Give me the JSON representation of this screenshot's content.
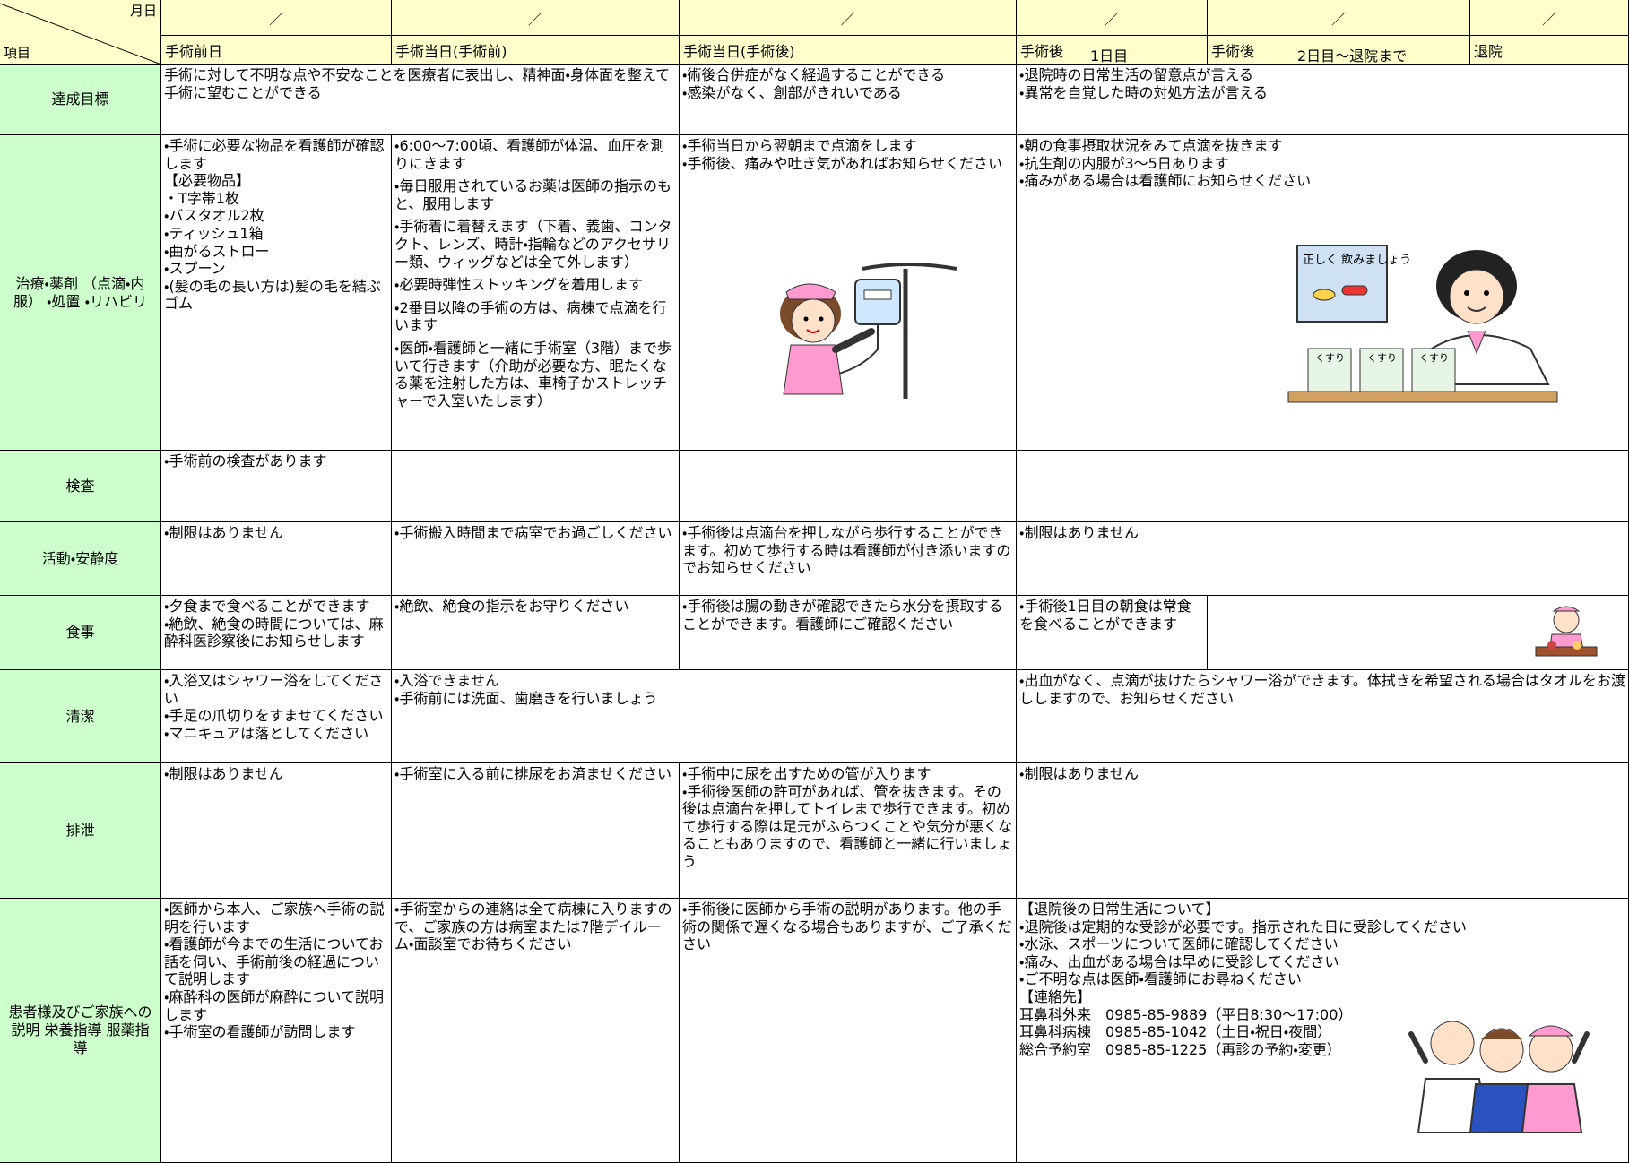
{
  "header": {
    "corner_date": "月日",
    "corner_item": "項目",
    "date_mark": "／",
    "columns": [
      {
        "label": "手術前日"
      },
      {
        "label": "手術当日(手術前)"
      },
      {
        "label": "手術当日(手術後)"
      },
      {
        "label": "手術後",
        "sub": "1日目"
      },
      {
        "label": "手術後",
        "sub": "2日目～退院まで"
      },
      {
        "label": "退院"
      }
    ]
  },
  "rows": [
    {
      "label": "達成目標",
      "cells": [
        [
          "手術に対して不明な点や不安なことを医療者に表出し、精神面・身体面を整えて手術に望むことができる"
        ],
        [
          "・術後合併症がなく経過することができる",
          "・感染がなく、創部がきれいである"
        ],
        [
          "・退院時の日常生活の留意点が言える",
          "・異常を自覚した時の対処方法が言える"
        ]
      ]
    },
    {
      "label": "治療・薬剤 （点滴・内服） ・処置 ・リハビリ",
      "cells": [
        [
          "・手術に必要な物品を看護師が確認します",
          "【必要物品】",
          "・T字帯1枚",
          "・バスタオル2枚",
          "・ティッシュ1箱",
          "・曲がるストロー",
          "・スプーン",
          "・(髪の毛の長い方は)髪の毛を結ぶゴム"
        ],
        [
          "・6:00～7:00頃、看護師が体温、血圧を測りにきます",
          "・毎日服用されているお薬は医師の指示のもと、服用します",
          "・手術着に着替えます（下着、義歯、コンタクト、レンズ、時計・指輪などのアクセサリー類、ウィッグなどは全て外します）",
          "・必要時弾性ストッキングを着用します",
          "・2番目以降の手術の方は、病棟で点滴を行います",
          "・医師・看護師と一緒に手術室（3階）まで歩いて行きます（介助が必要な方、眠たくなる薬を注射した方は、車椅子かストレッチャーで入室いたします）"
        ],
        [
          "・手術当日から翌朝まで点滴をします",
          "・手術後、痛みや吐き気があればお知らせください"
        ],
        [
          "・朝の食事摂取状況をみて点滴を抜きます",
          "・抗生剤の内服が3～5日あります",
          "・痛みがある場合は看護師にお知らせください"
        ]
      ]
    },
    {
      "label": "検査",
      "cells": [
        [
          "・手術前の検査があります"
        ]
      ]
    },
    {
      "label": "活動・安静度",
      "cells": [
        [
          "・制限はありません"
        ],
        [
          "・手術搬入時間まで病室でお過ごしください"
        ],
        [
          "・手術後は点滴台を押しながら歩行することができます。初めて歩行する時は看護師が付き添いますのでお知らせください"
        ],
        [
          "・制限はありません"
        ]
      ]
    },
    {
      "label": "食事",
      "cells": [
        [
          "・夕食まで食べることができます",
          "・絶飲、絶食の時間については、麻酔科医診察後にお知らせします"
        ],
        [
          "・絶飲、絶食の指示をお守りください"
        ],
        [
          "・手術後は腸の動きが確認できたら水分を摂取することができます。看護師にご確認ください"
        ],
        [
          "・手術後1日目の朝食は常食を食べることができます"
        ]
      ]
    },
    {
      "label": "清潔",
      "cells": [
        [
          "・入浴又はシャワー浴をしてください",
          "・手足の爪切りをすませてください",
          "・マニキュアは落としてください"
        ],
        [
          "・入浴できません",
          "・手術前には洗面、歯磨きを行いましょう"
        ],
        [
          "・出血がなく、点滴が抜けたらシャワー浴ができます。体拭きを希望される場合はタオルをお渡ししますので、お知らせください"
        ]
      ]
    },
    {
      "label": "排泄",
      "cells": [
        [
          "・制限はありません"
        ],
        [
          "・手術室に入る前に排尿をお済ませください"
        ],
        [
          "・手術中に尿を出すための管が入ります",
          "・手術後医師の許可があれば、管を抜きます。その後は点滴台を押してトイレまで歩行できます。初めて歩行する際は足元がふらつくことや気分が悪くなることもありますので、看護師と一緒に行いましょう"
        ],
        [
          "・制限はありません"
        ]
      ]
    },
    {
      "label": "患者様及びご家族への説明 栄養指導 服薬指導",
      "cells": [
        [
          "・医師から本人、ご家族へ手術の説明を行います",
          "・看護師が今までの生活についてお話を伺い、手術前後の経過について説明します",
          "・麻酔科の医師が麻酔について説明します",
          "・手術室の看護師が訪問します"
        ],
        [
          "・手術室からの連絡は全て病棟に入りますので、ご家族の方は病室または7階デイルーム・面談室でお待ちください"
        ],
        [
          "・手術後に医師から手術の説明があります。他の手術の関係で遅くなる場合もありますが、ご了承ください"
        ],
        [
          "【退院後の日常生活について】",
          "・退院後は定期的な受診が必要です。指示された日に受診してください",
          "・水泳、スポーツについて医師に確認してください",
          "・痛み、出血がある場合は早めに受診してください",
          "・ご不明な点は医師・看護師にお尋ねください",
          "【連絡先】",
          "耳鼻科外来　0985-85-9889（平日8:30～17:00）",
          "耳鼻科病棟　0985-85-1042（土日・祝日・夜間）",
          "総合予約室　0985-85-1225（再診の予約・変更）"
        ]
      ]
    }
  ],
  "illustrations": {
    "poster": "正しく 飲みましょう",
    "medicine": "くすり"
  }
}
